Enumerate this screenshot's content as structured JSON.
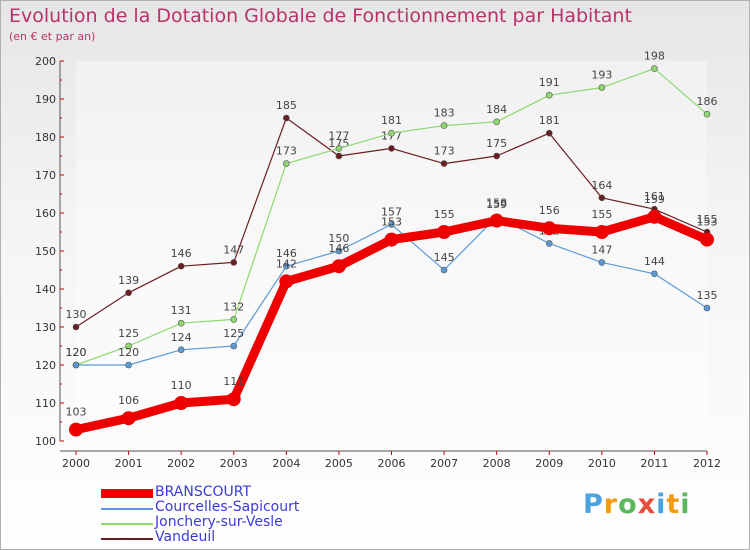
{
  "title": "Evolution de la Dotation Globale de Fonctionnement par Habitant",
  "subtitle": "(en € et par an)",
  "chart_data": {
    "type": "line",
    "title": "Evolution de la Dotation Globale de Fonctionnement par Habitant",
    "subtitle": "(en € et par an)",
    "xlabel": "",
    "ylabel": "",
    "ylim": [
      100,
      200
    ],
    "yticks": [
      100,
      110,
      120,
      130,
      140,
      150,
      160,
      170,
      180,
      190,
      200
    ],
    "grid": false,
    "categories": [
      "2000",
      "2001",
      "2002",
      "2003",
      "2004",
      "2005",
      "2006",
      "2007",
      "2008",
      "2009",
      "2010",
      "2011",
      "2012"
    ],
    "series": [
      {
        "name": "Vandeuil",
        "color": "#6b1e22",
        "values": [
          130,
          139,
          146,
          147,
          185,
          175,
          177,
          173,
          175,
          181,
          164,
          161,
          155
        ]
      },
      {
        "name": "Jonchery-sur-Vesle",
        "color": "#8fd870",
        "values": [
          120,
          125,
          131,
          132,
          173,
          177,
          181,
          183,
          184,
          191,
          193,
          198,
          186
        ]
      },
      {
        "name": "Courcelles-Sapicourt",
        "color": "#5b9bd5",
        "values": [
          120,
          120,
          124,
          125,
          146,
          150,
          157,
          145,
          159,
          152,
          147,
          144,
          135
        ]
      },
      {
        "name": "BRANSCOURT",
        "color": "#ee0000",
        "values": [
          103,
          106,
          110,
          111,
          142,
          146,
          153,
          155,
          158,
          156,
          155,
          159,
          153
        ]
      }
    ],
    "legend_order": [
      "BRANSCOURT",
      "Courcelles-Sapicourt",
      "Jonchery-sur-Vesle",
      "Vandeuil"
    ],
    "legend_position": "bottom-left"
  },
  "logo": {
    "letters": [
      "P",
      "r",
      "o",
      "x",
      "i",
      "t",
      "i"
    ],
    "colors": [
      "#4aa3df",
      "#f39c12",
      "#5cb85c",
      "#e74c3c",
      "#4aa3df",
      "#f39c12",
      "#5cb85c"
    ]
  }
}
